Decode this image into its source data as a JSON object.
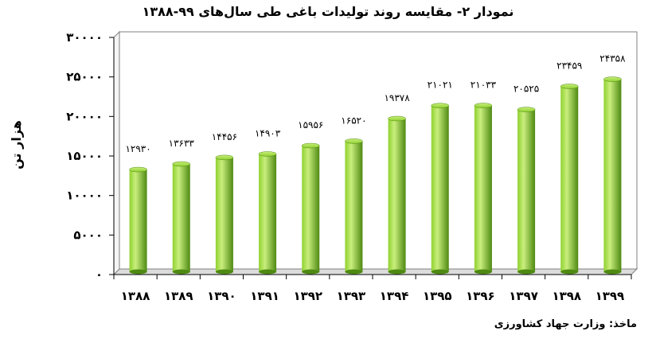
{
  "title": "نمودار ۲- مقایسه روند تولیدات باغی طی سال‌های ۹۹-۱۳۸۸",
  "source": "ماخذ: وزارت جهاد کشاورزی",
  "colors": {
    "bar_light": "#c9ee7d",
    "bar_mid": "#8fd12f",
    "bar_dark": "#4e8a12",
    "plot_border": "#808080"
  },
  "chart_data": {
    "type": "bar",
    "title": "نمودار ۲- مقایسه روند تولیدات باغی طی سال‌های ۹۹-۱۳۸۸",
    "ylabel": "هزار تن",
    "xlabel": "",
    "ylim": [
      0,
      30000
    ],
    "yticks": [
      0,
      5000,
      10000,
      15000,
      20000,
      25000,
      30000
    ],
    "ytick_labels": [
      "۰",
      "۵۰۰۰",
      "۱۰۰۰۰",
      "۱۵۰۰۰",
      "۲۰۰۰۰",
      "۲۵۰۰۰",
      "۳۰۰۰۰"
    ],
    "grid": false,
    "categories": [
      "۱۳۸۸",
      "۱۳۸۹",
      "۱۳۹۰",
      "۱۳۹۱",
      "۱۳۹۲",
      "۱۳۹۳",
      "۱۳۹۴",
      "۱۳۹۵",
      "۱۳۹۶",
      "۱۳۹۷",
      "۱۳۹۸",
      "۱۳۹۹"
    ],
    "values": [
      12930,
      13633,
      14456,
      14903,
      15956,
      16520,
      19378,
      21021,
      21033,
      20525,
      23459,
      24358
    ],
    "data_labels": [
      "۱۲۹۳۰",
      "۱۳۶۳۳",
      "۱۴۴۵۶",
      "۱۴۹۰۳",
      "۱۵۹۵۶",
      "۱۶۵۲۰",
      "۱۹۳۷۸",
      "۲۱۰۲۱",
      "۲۱۰۳۳",
      "۲۰۵۲۵",
      "۲۳۴۵۹",
      "۲۴۳۵۸"
    ]
  }
}
